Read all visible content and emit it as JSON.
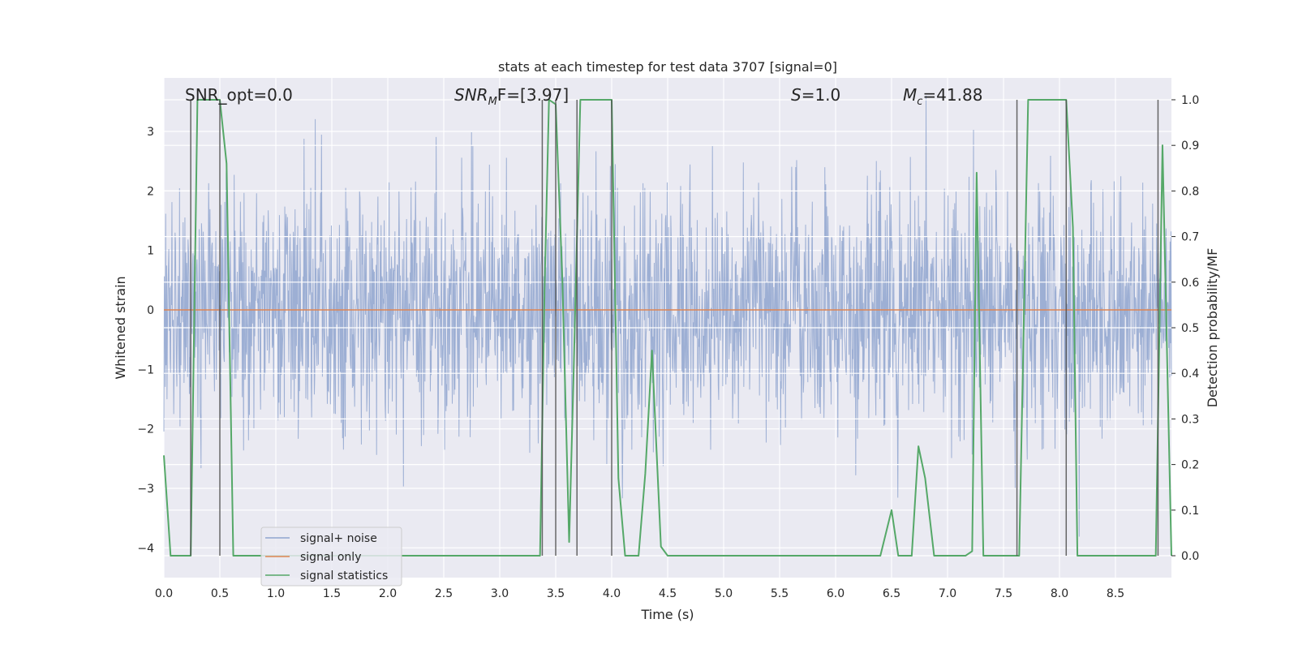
{
  "chart_data": {
    "type": "line",
    "title": "stats at each timestep for test data 3707 [signal=0]",
    "xlabel": "Time (s)",
    "ylabel_left": "Whitened strain",
    "ylabel_right": "Detection probability/MF",
    "xlim": [
      0.0,
      9.0
    ],
    "ylim_left": [
      -4.5,
      3.9
    ],
    "ylim_right": [
      -0.048,
      1.048
    ],
    "x_ticks": [
      "0.0",
      "0.5",
      "1.0",
      "1.5",
      "2.0",
      "2.5",
      "3.0",
      "3.5",
      "4.0",
      "4.5",
      "5.0",
      "5.5",
      "6.0",
      "6.5",
      "7.0",
      "7.5",
      "8.0",
      "8.5"
    ],
    "y_left_ticks": [
      "3",
      "2",
      "1",
      "0",
      "−1",
      "−2",
      "−3",
      "−4"
    ],
    "y_right_ticks": [
      "1.0",
      "0.9",
      "0.8",
      "0.7",
      "0.6",
      "0.5",
      "0.4",
      "0.3",
      "0.2",
      "0.1",
      "0.0"
    ],
    "grid": true,
    "legend_position": "lower-left",
    "annotations": {
      "snr_opt": "SNR_opt=0.0",
      "snr_mf_base": "SNR",
      "snr_mf_sub": "M",
      "snr_mf_rest": "F=[3.97]",
      "s_var": "S",
      "s_rest": "=1.0",
      "mc_var": "M",
      "mc_sub": "c",
      "mc_rest": "=41.88"
    },
    "vertical_markers_x": [
      0.24,
      0.5,
      3.38,
      3.5,
      3.69,
      4.0,
      7.62,
      8.06,
      8.88
    ],
    "series": [
      {
        "name": "signal+ noise",
        "color": "#8fa5cf",
        "kind": "noise",
        "sample_step": 0.004,
        "envelope_low": -2.0,
        "envelope_high": 2.0,
        "ymin": -4.0,
        "ymax": 3.6
      },
      {
        "name": "signal only",
        "color": "#dd8452",
        "x": [
          0.0,
          9.0
        ],
        "y": [
          0.0,
          0.0
        ]
      },
      {
        "name": "signal statistics",
        "color": "#55a868",
        "axis": "right",
        "x": [
          0.0,
          0.06,
          0.12,
          0.18,
          0.24,
          0.3,
          0.36,
          0.42,
          0.48,
          0.5,
          0.56,
          0.62,
          0.68,
          0.74,
          3.3,
          3.36,
          3.4,
          3.44,
          3.5,
          3.56,
          3.62,
          3.66,
          3.72,
          3.78,
          3.84,
          3.9,
          3.96,
          4.0,
          4.06,
          4.12,
          4.18,
          4.24,
          4.3,
          4.36,
          4.44,
          4.5,
          6.4,
          6.5,
          6.56,
          6.62,
          6.68,
          6.74,
          6.8,
          6.88,
          7.1,
          7.16,
          7.22,
          7.26,
          7.32,
          7.38,
          7.58,
          7.64,
          7.72,
          7.78,
          8.06,
          8.12,
          8.16,
          8.22,
          8.3,
          8.8,
          8.86,
          8.92,
          9.0
        ],
        "y": [
          0.22,
          0.0,
          0.0,
          0.0,
          0.0,
          1.0,
          1.0,
          1.0,
          1.0,
          1.0,
          0.86,
          0.0,
          0.0,
          0.0,
          0.0,
          0.0,
          0.58,
          1.0,
          0.99,
          0.6,
          0.03,
          0.4,
          1.0,
          1.0,
          1.0,
          1.0,
          1.0,
          1.0,
          0.17,
          0.0,
          0.0,
          0.0,
          0.18,
          0.45,
          0.02,
          0.0,
          0.0,
          0.1,
          0.0,
          0.0,
          0.0,
          0.24,
          0.17,
          0.0,
          0.0,
          0.0,
          0.01,
          0.84,
          0.0,
          0.0,
          0.0,
          0.0,
          1.0,
          1.0,
          1.0,
          0.72,
          0.0,
          0.0,
          0.0,
          0.0,
          0.0,
          0.9,
          0.0
        ]
      }
    ]
  }
}
